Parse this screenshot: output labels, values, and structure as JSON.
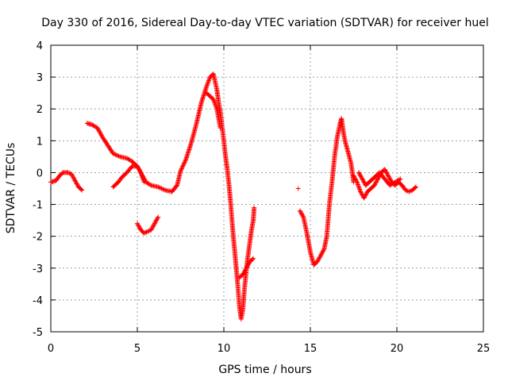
{
  "chart_data": {
    "type": "scatter",
    "title": "Day 330 of 2016, Sidereal Day-to-day VTEC variation (SDTVAR) for receiver huel",
    "xlabel": "GPS time / hours",
    "ylabel": "SDTVAR / TECUs",
    "xlim": [
      0,
      25
    ],
    "ylim": [
      -5,
      4
    ],
    "xticks": [
      "0",
      "5",
      "10",
      "15",
      "20",
      "25"
    ],
    "yticks": [
      "4",
      "3",
      "2",
      "1",
      "0",
      "-1",
      "-2",
      "-3",
      "-4",
      "-5"
    ],
    "grid": true,
    "marker": "+",
    "color": "#ff0000",
    "series": [
      {
        "segments": [
          [
            [
              0.0,
              -0.3
            ],
            [
              0.3,
              -0.25
            ],
            [
              0.5,
              -0.1
            ],
            [
              0.7,
              0.0
            ],
            [
              1.0,
              0.0
            ],
            [
              1.2,
              -0.05
            ],
            [
              1.4,
              -0.25
            ],
            [
              1.6,
              -0.45
            ],
            [
              1.8,
              -0.55
            ]
          ],
          [
            [
              2.1,
              1.55
            ],
            [
              2.4,
              1.5
            ],
            [
              2.7,
              1.4
            ],
            [
              3.0,
              1.1
            ],
            [
              3.3,
              0.85
            ],
            [
              3.6,
              0.6
            ],
            [
              4.0,
              0.5
            ],
            [
              4.4,
              0.45
            ],
            [
              4.7,
              0.35
            ],
            [
              5.0,
              0.2
            ],
            [
              5.2,
              0.0
            ],
            [
              5.4,
              -0.3
            ]
          ],
          [
            [
              3.6,
              -0.45
            ],
            [
              3.9,
              -0.3
            ],
            [
              4.1,
              -0.15
            ],
            [
              4.4,
              0.0
            ],
            [
              4.7,
              0.2
            ],
            [
              5.0,
              0.2
            ],
            [
              5.2,
              0.0
            ],
            [
              5.5,
              -0.3
            ],
            [
              5.8,
              -0.4
            ],
            [
              6.2,
              -0.45
            ],
            [
              6.6,
              -0.55
            ],
            [
              7.0,
              -0.6
            ],
            [
              7.3,
              -0.4
            ],
            [
              7.5,
              0.05
            ],
            [
              7.8,
              0.4
            ],
            [
              8.1,
              0.9
            ],
            [
              8.4,
              1.5
            ],
            [
              8.7,
              2.2
            ],
            [
              9.0,
              2.7
            ],
            [
              9.2,
              3.0
            ],
            [
              9.4,
              3.1
            ],
            [
              9.6,
              2.6
            ],
            [
              9.7,
              2.2
            ],
            [
              9.8,
              1.9
            ],
            [
              10.0,
              1.0
            ],
            [
              10.1,
              0.5
            ],
            [
              10.2,
              0.1
            ],
            [
              10.3,
              -0.4
            ],
            [
              10.4,
              -1.0
            ],
            [
              10.5,
              -1.7
            ],
            [
              10.6,
              -2.3
            ],
            [
              10.7,
              -2.9
            ],
            [
              10.8,
              -3.5
            ],
            [
              10.9,
              -4.2
            ],
            [
              11.0,
              -4.6
            ],
            [
              11.1,
              -4.3
            ],
            [
              11.2,
              -3.6
            ],
            [
              11.35,
              -2.8
            ],
            [
              11.5,
              -2.2
            ],
            [
              11.6,
              -1.8
            ],
            [
              11.7,
              -1.5
            ],
            [
              11.75,
              -1.1
            ]
          ],
          [
            [
              9.0,
              2.5
            ],
            [
              9.2,
              2.4
            ],
            [
              9.4,
              2.3
            ],
            [
              9.6,
              2.0
            ],
            [
              9.8,
              1.4
            ]
          ],
          [
            [
              5.0,
              -1.6
            ],
            [
              5.2,
              -1.8
            ],
            [
              5.4,
              -1.9
            ],
            [
              5.6,
              -1.85
            ],
            [
              5.8,
              -1.8
            ],
            [
              6.0,
              -1.6
            ],
            [
              6.2,
              -1.4
            ]
          ],
          [
            [
              10.9,
              -3.3
            ],
            [
              11.1,
              -3.2
            ],
            [
              11.3,
              -3.0
            ],
            [
              11.5,
              -2.8
            ],
            [
              11.7,
              -2.7
            ]
          ],
          [
            [
              14.3,
              -0.5
            ]
          ],
          [
            [
              14.4,
              -1.2
            ],
            [
              14.6,
              -1.4
            ],
            [
              14.8,
              -1.9
            ],
            [
              15.0,
              -2.5
            ],
            [
              15.2,
              -2.9
            ],
            [
              15.4,
              -2.8
            ],
            [
              15.6,
              -2.6
            ],
            [
              15.8,
              -2.4
            ],
            [
              15.95,
              -2.0
            ],
            [
              16.1,
              -1.0
            ],
            [
              16.25,
              -0.3
            ],
            [
              16.4,
              0.5
            ],
            [
              16.55,
              1.1
            ],
            [
              16.7,
              1.5
            ],
            [
              16.8,
              1.7
            ],
            [
              16.9,
              1.3
            ],
            [
              17.0,
              1.0
            ],
            [
              17.2,
              0.6
            ],
            [
              17.35,
              0.3
            ],
            [
              17.5,
              -0.3
            ]
          ],
          [
            [
              17.5,
              -0.1
            ],
            [
              17.7,
              -0.3
            ],
            [
              17.9,
              -0.6
            ],
            [
              18.1,
              -0.8
            ],
            [
              18.3,
              -0.6
            ],
            [
              18.5,
              -0.5
            ],
            [
              18.7,
              -0.4
            ],
            [
              18.9,
              -0.2
            ],
            [
              19.1,
              0.0
            ],
            [
              19.3,
              0.1
            ],
            [
              19.5,
              -0.1
            ],
            [
              19.7,
              -0.3
            ],
            [
              19.9,
              -0.4
            ],
            [
              20.1,
              -0.3
            ],
            [
              20.3,
              -0.4
            ],
            [
              20.5,
              -0.55
            ],
            [
              20.7,
              -0.6
            ],
            [
              20.9,
              -0.55
            ],
            [
              21.1,
              -0.45
            ]
          ],
          [
            [
              17.8,
              0.0
            ],
            [
              18.0,
              -0.2
            ],
            [
              18.2,
              -0.4
            ],
            [
              18.4,
              -0.3
            ],
            [
              18.6,
              -0.2
            ],
            [
              18.8,
              -0.1
            ],
            [
              19.0,
              0.0
            ],
            [
              19.3,
              -0.2
            ],
            [
              19.6,
              -0.4
            ],
            [
              19.9,
              -0.3
            ],
            [
              20.2,
              -0.2
            ]
          ]
        ]
      }
    ]
  }
}
